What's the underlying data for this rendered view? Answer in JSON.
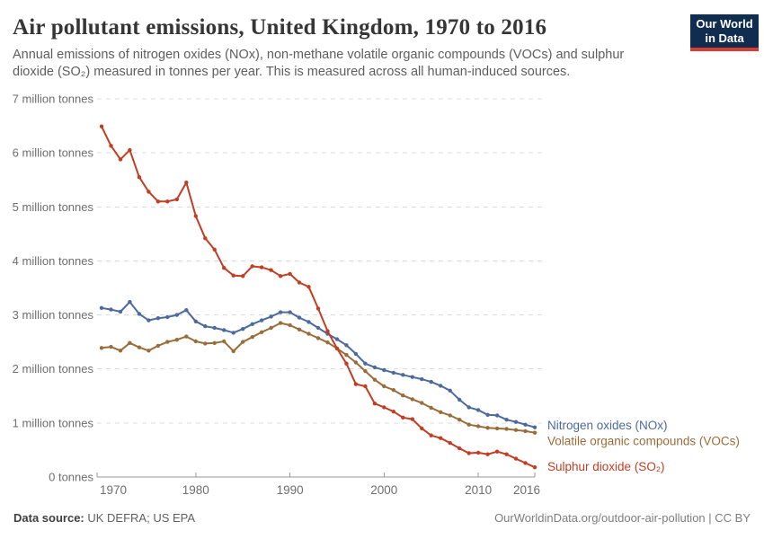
{
  "header": {
    "title": "Air pollutant emissions, United Kingdom, 1970 to 2016",
    "subtitle_line1": "Annual emissions of nitrogen oxides (NOx), non-methane volatile organic compounds (VOCs) and sulphur",
    "subtitle_line2": "dioxide (SO₂) measured in tonnes per year. This is measured across all human-induced sources.",
    "logo": {
      "line1": "Our World",
      "line2": "in Data",
      "bg_color": "#102d4f",
      "bar_color": "#d93a31"
    }
  },
  "chart_data": {
    "type": "line",
    "title": "Air pollutant emissions, United Kingdom, 1970 to 2016",
    "unit": "tonnes per year",
    "xlim": [
      1970,
      2016
    ],
    "ylim": [
      0,
      7000000
    ],
    "grid": "horizontal-dashed",
    "legend_position": "right-end-labels",
    "x": [
      1970,
      1971,
      1972,
      1973,
      1974,
      1975,
      1976,
      1977,
      1978,
      1979,
      1980,
      1981,
      1982,
      1983,
      1984,
      1985,
      1986,
      1987,
      1988,
      1989,
      1990,
      1991,
      1992,
      1993,
      1994,
      1995,
      1996,
      1997,
      1998,
      1999,
      2000,
      2001,
      2002,
      2003,
      2004,
      2005,
      2006,
      2007,
      2008,
      2009,
      2010,
      2011,
      2012,
      2013,
      2014,
      2015,
      2016
    ],
    "x_ticks": [
      1970,
      1980,
      1990,
      2000,
      2010,
      2016
    ],
    "y_ticks": [
      {
        "value": 7,
        "label": "7 million tonnes"
      },
      {
        "value": 6,
        "label": "6 million tonnes"
      },
      {
        "value": 5,
        "label": "5 million tonnes"
      },
      {
        "value": 4,
        "label": "4 million tonnes"
      },
      {
        "value": 3,
        "label": "3 million tonnes"
      },
      {
        "value": 2,
        "label": "2 million tonnes"
      },
      {
        "value": 1,
        "label": "1 million tonnes"
      },
      {
        "value": 0,
        "label": "0 tonnes"
      }
    ],
    "y_unit_millions": true,
    "series": [
      {
        "name": "Nitrogen oxides (NOx)",
        "slug": "nitrogen-oxides",
        "color": "#4c6a9c",
        "values": [
          3.13,
          3.1,
          3.06,
          3.24,
          3.02,
          2.9,
          2.94,
          2.96,
          3.0,
          3.09,
          2.88,
          2.79,
          2.76,
          2.72,
          2.67,
          2.74,
          2.83,
          2.9,
          2.97,
          3.05,
          3.05,
          2.95,
          2.87,
          2.76,
          2.65,
          2.55,
          2.44,
          2.28,
          2.1,
          2.03,
          1.98,
          1.93,
          1.89,
          1.85,
          1.81,
          1.76,
          1.69,
          1.6,
          1.43,
          1.29,
          1.24,
          1.15,
          1.14,
          1.06,
          1.02,
          0.97,
          0.92
        ]
      },
      {
        "name": "Volatile organic compounds (VOCs)",
        "slug": "volatile-organic-compounds",
        "color": "#996d39",
        "values": [
          2.39,
          2.41,
          2.34,
          2.48,
          2.4,
          2.34,
          2.43,
          2.5,
          2.54,
          2.6,
          2.51,
          2.47,
          2.48,
          2.51,
          2.33,
          2.5,
          2.59,
          2.68,
          2.76,
          2.85,
          2.81,
          2.73,
          2.65,
          2.57,
          2.49,
          2.38,
          2.26,
          2.12,
          1.96,
          1.8,
          1.68,
          1.61,
          1.51,
          1.44,
          1.37,
          1.28,
          1.2,
          1.14,
          1.06,
          0.97,
          0.94,
          0.91,
          0.9,
          0.89,
          0.87,
          0.85,
          0.82
        ]
      },
      {
        "name": "Sulphur dioxide (SO₂)",
        "slug": "sulphur-dioxide",
        "color": "#c23d23",
        "values": [
          6.49,
          6.13,
          5.88,
          6.05,
          5.55,
          5.28,
          5.1,
          5.1,
          5.14,
          5.45,
          4.83,
          4.42,
          4.21,
          3.87,
          3.73,
          3.72,
          3.9,
          3.88,
          3.83,
          3.72,
          3.76,
          3.6,
          3.52,
          3.12,
          2.7,
          2.38,
          2.1,
          1.72,
          1.68,
          1.36,
          1.29,
          1.21,
          1.1,
          1.07,
          0.9,
          0.77,
          0.72,
          0.63,
          0.53,
          0.44,
          0.45,
          0.42,
          0.47,
          0.42,
          0.34,
          0.26,
          0.18
        ]
      }
    ]
  },
  "footer": {
    "source_label": "Data source:",
    "source_value": "UK DEFRA; US EPA",
    "link": "OurWorldinData.org/outdoor-air-pollution | CC BY"
  }
}
